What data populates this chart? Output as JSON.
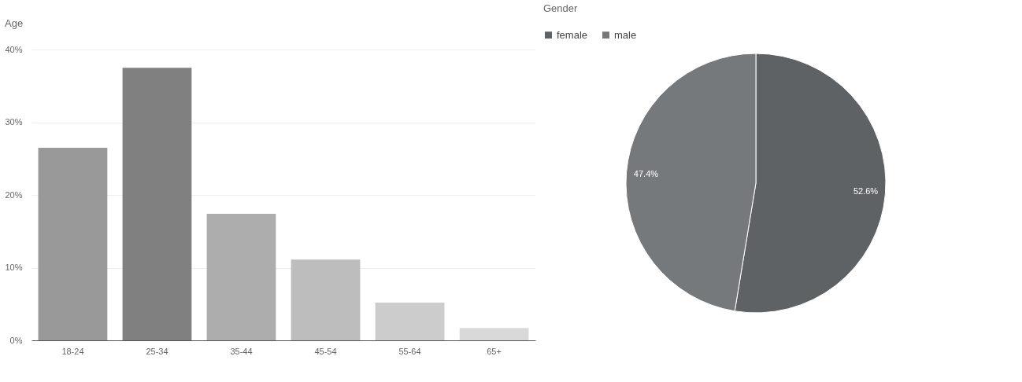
{
  "chart_data": [
    {
      "type": "bar",
      "title": "Age",
      "categories": [
        "18-24",
        "25-34",
        "35-44",
        "45-54",
        "55-64",
        "65+"
      ],
      "values": [
        26.5,
        37.5,
        17.4,
        11.1,
        5.2,
        1.7
      ],
      "colors": [
        "#999999",
        "#808080",
        "#adadad",
        "#bdbdbd",
        "#cccccc",
        "#d9d9d9"
      ],
      "ylim": [
        0,
        40
      ],
      "yticks": [
        {
          "value": 0,
          "label": "0%"
        },
        {
          "value": 10,
          "label": "10%"
        },
        {
          "value": 20,
          "label": "20%"
        },
        {
          "value": 30,
          "label": "30%"
        },
        {
          "value": 40,
          "label": "40%"
        }
      ],
      "grid": "y",
      "legend": false
    },
    {
      "type": "pie",
      "title": "Gender",
      "categories": [
        "female",
        "male"
      ],
      "values": [
        52.6,
        47.4
      ],
      "colors": [
        "#5f6264",
        "#76797b"
      ],
      "value_labels": [
        "52.6%",
        "47.4%"
      ],
      "legend": "top"
    }
  ]
}
